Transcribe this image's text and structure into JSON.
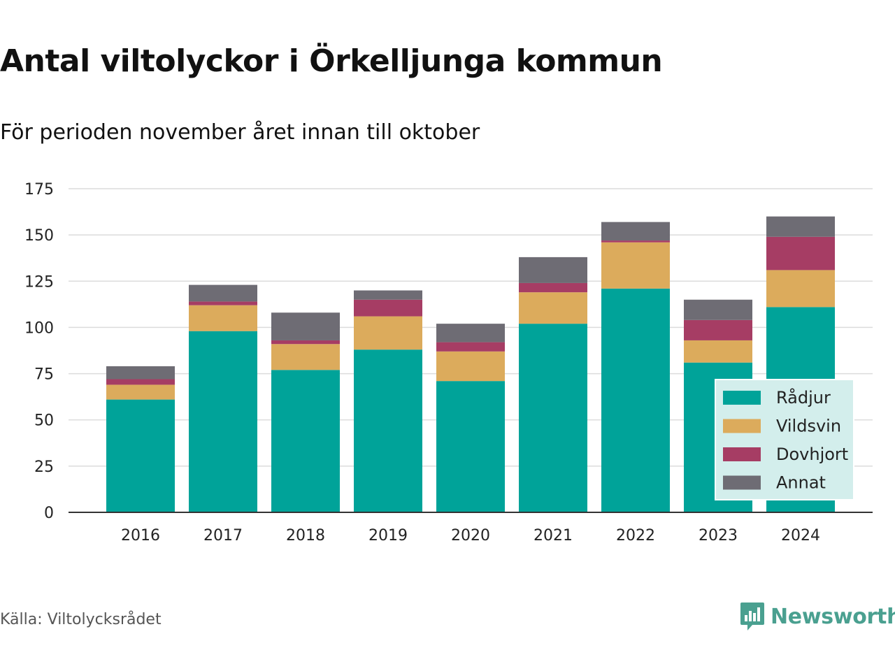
{
  "header": {
    "title": "Antal viltolyckor i Örkelljunga kommun",
    "subtitle": "För perioden november året innan till oktober"
  },
  "footer": {
    "source": "Källa: Viltolycksrådet",
    "brand": "Newsworthy"
  },
  "icons": {
    "brand_logo": "bar-chart-speech-bubble-icon"
  },
  "chart_data": {
    "type": "bar",
    "stacked": true,
    "categories": [
      "2016",
      "2017",
      "2018",
      "2019",
      "2020",
      "2021",
      "2022",
      "2023",
      "2024"
    ],
    "series": [
      {
        "name": "Rådjur",
        "color": "#00a399",
        "values": [
          61,
          98,
          77,
          88,
          71,
          102,
          121,
          81,
          111
        ]
      },
      {
        "name": "Vildsvin",
        "color": "#dcab5c",
        "values": [
          8,
          14,
          14,
          18,
          16,
          17,
          25,
          12,
          20
        ]
      },
      {
        "name": "Dovhjort",
        "color": "#a63d64",
        "values": [
          3,
          2,
          2,
          9,
          5,
          5,
          1,
          11,
          18
        ]
      },
      {
        "name": "Annat",
        "color": "#6e6c74",
        "values": [
          7,
          9,
          15,
          5,
          10,
          14,
          10,
          11,
          11
        ]
      }
    ],
    "ylim": [
      0,
      175
    ],
    "yticks": [
      0,
      25,
      50,
      75,
      100,
      125,
      150,
      175
    ],
    "grid": true,
    "legend": {
      "position": "bottom-right",
      "background": "#d3eeec"
    }
  }
}
